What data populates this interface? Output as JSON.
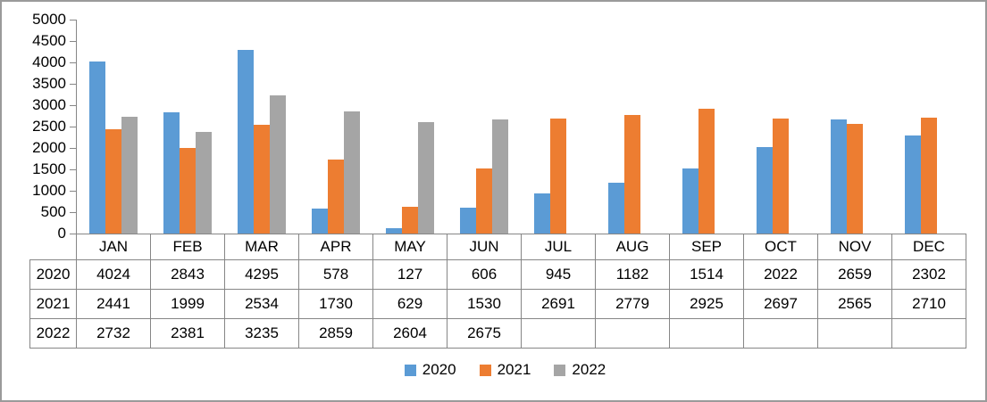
{
  "chart_data": {
    "type": "bar",
    "title": "",
    "xlabel": "",
    "ylabel": "",
    "categories": [
      "JAN",
      "FEB",
      "MAR",
      "APR",
      "MAY",
      "JUN",
      "JUL",
      "AUG",
      "SEP",
      "OCT",
      "NOV",
      "DEC"
    ],
    "series": [
      {
        "name": "2020",
        "color": "#5B9BD5",
        "values": [
          4024,
          2843,
          4295,
          578,
          127,
          606,
          945,
          1182,
          1514,
          2022,
          2659,
          2302
        ]
      },
      {
        "name": "2021",
        "color": "#ED7D31",
        "values": [
          2441,
          1999,
          2534,
          1730,
          629,
          1530,
          2691,
          2779,
          2925,
          2697,
          2565,
          2710
        ]
      },
      {
        "name": "2022",
        "color": "#A5A5A5",
        "values": [
          2732,
          2381,
          3235,
          2859,
          2604,
          2675,
          null,
          null,
          null,
          null,
          null,
          null
        ]
      }
    ],
    "ylim": [
      0,
      5000
    ],
    "ytick_interval": 500,
    "ytick_labels": [
      "5000",
      "4500",
      "4000",
      "3500",
      "3000",
      "2500",
      "2000",
      "1500",
      "1000",
      "500",
      "0"
    ],
    "grid": false,
    "legend_position": "bottom",
    "legend_labels": [
      "2020",
      "2021",
      "2022"
    ]
  },
  "table": {
    "column_headers": [
      "JAN",
      "FEB",
      "MAR",
      "APR",
      "MAY",
      "JUN",
      "JUL",
      "AUG",
      "SEP",
      "OCT",
      "NOV",
      "DEC"
    ],
    "row_headers": [
      "2020",
      "2021",
      "2022"
    ],
    "rows": [
      [
        "4024",
        "2843",
        "4295",
        "578",
        "127",
        "606",
        "945",
        "1182",
        "1514",
        "2022",
        "2659",
        "2302"
      ],
      [
        "2441",
        "1999",
        "2534",
        "1730",
        "629",
        "1530",
        "2691",
        "2779",
        "2925",
        "2697",
        "2565",
        "2710"
      ],
      [
        "2732",
        "2381",
        "3235",
        "2859",
        "2604",
        "2675",
        "",
        "",
        "",
        "",
        "",
        ""
      ]
    ]
  },
  "colors": {
    "axis": "#868686",
    "table_border": "#868686",
    "frame_border": "#9a9a9a",
    "text": "#000000",
    "background": "#ffffff"
  }
}
